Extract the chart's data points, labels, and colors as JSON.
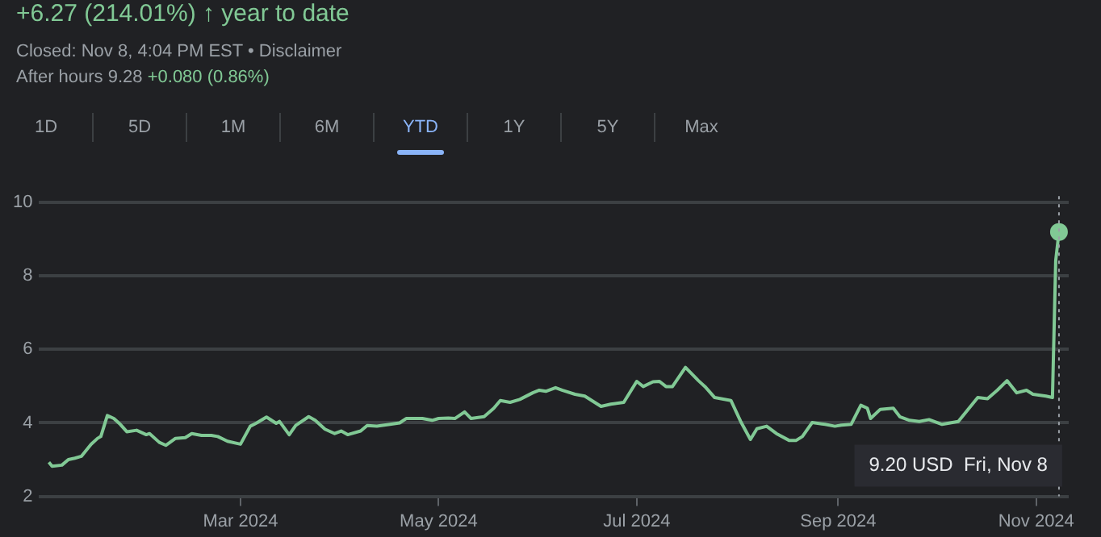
{
  "chart_data": {
    "type": "line",
    "title": "+6.27 (214.01%) ↑ year to date",
    "subtitle": "Closed: Nov 8, 4:04 PM EST • Disclaimer",
    "annotations": [
      "After hours 9.28",
      "+0.080 (0.86%)",
      "1D",
      "5D",
      "1M",
      "6M",
      "YTD",
      "1Y",
      "5Y",
      "Max",
      "9.20 USD  Fri, Nov 8"
    ],
    "x": [
      "2024-01-02",
      "2024-01-03",
      "2024-01-06",
      "2024-01-08",
      "2024-01-10",
      "2024-01-12",
      "2024-01-15",
      "2024-01-17",
      "2024-01-18",
      "2024-01-20",
      "2024-01-22",
      "2024-01-24",
      "2024-01-26",
      "2024-01-29",
      "2024-02-01",
      "2024-02-02",
      "2024-02-05",
      "2024-02-07",
      "2024-02-10",
      "2024-02-13",
      "2024-02-15",
      "2024-02-18",
      "2024-02-21",
      "2024-02-23",
      "2024-02-26",
      "2024-03-01",
      "2024-03-04",
      "2024-03-06",
      "2024-03-09",
      "2024-03-12",
      "2024-03-13",
      "2024-03-16",
      "2024-03-18",
      "2024-03-22",
      "2024-03-24",
      "2024-03-27",
      "2024-03-30",
      "2024-04-01",
      "2024-04-03",
      "2024-04-07",
      "2024-04-09",
      "2024-04-12",
      "2024-04-16",
      "2024-04-19",
      "2024-04-21",
      "2024-04-26",
      "2024-04-29",
      "2024-05-01",
      "2024-05-04",
      "2024-05-06",
      "2024-05-09",
      "2024-05-11",
      "2024-05-15",
      "2024-05-18",
      "2024-05-20",
      "2024-05-23",
      "2024-05-26",
      "2024-05-30",
      "2024-06-01",
      "2024-06-03",
      "2024-06-06",
      "2024-06-08",
      "2024-06-12",
      "2024-06-15",
      "2024-06-20",
      "2024-06-23",
      "2024-06-27",
      "2024-07-01",
      "2024-07-03",
      "2024-07-06",
      "2024-07-08",
      "2024-07-10",
      "2024-07-12",
      "2024-07-16",
      "2024-07-20",
      "2024-07-22",
      "2024-07-25",
      "2024-07-30",
      "2024-08-02",
      "2024-08-05",
      "2024-08-07",
      "2024-08-10",
      "2024-08-13",
      "2024-08-17",
      "2024-08-19",
      "2024-08-21",
      "2024-08-24",
      "2024-08-28",
      "2024-08-31",
      "2024-09-02",
      "2024-09-05",
      "2024-09-08",
      "2024-09-10",
      "2024-09-11",
      "2024-09-14",
      "2024-09-18",
      "2024-09-20",
      "2024-09-23",
      "2024-09-26",
      "2024-09-29",
      "2024-10-03",
      "2024-10-08",
      "2024-10-14",
      "2024-10-17",
      "2024-10-20",
      "2024-10-23",
      "2024-10-26",
      "2024-10-29",
      "2024-10-31",
      "2024-11-04",
      "2024-11-06",
      "2024-11-07",
      "2024-11-08"
    ],
    "series": [
      {
        "color": "#81c995",
        "values": [
          2.93,
          2.82,
          2.85,
          3.0,
          3.04,
          3.09,
          3.42,
          3.58,
          3.63,
          4.2,
          4.12,
          3.96,
          3.76,
          3.8,
          3.68,
          3.71,
          3.47,
          3.39,
          3.58,
          3.6,
          3.71,
          3.66,
          3.66,
          3.63,
          3.5,
          3.42,
          3.91,
          4.0,
          4.16,
          3.99,
          4.04,
          3.68,
          3.93,
          4.17,
          4.07,
          3.83,
          3.71,
          3.78,
          3.68,
          3.78,
          3.93,
          3.91,
          3.96,
          4.0,
          4.12,
          4.12,
          4.07,
          4.12,
          4.13,
          4.12,
          4.3,
          4.12,
          4.17,
          4.4,
          4.61,
          4.56,
          4.64,
          4.82,
          4.89,
          4.86,
          4.96,
          4.89,
          4.78,
          4.73,
          4.45,
          4.51,
          4.56,
          5.13,
          4.99,
          5.12,
          5.13,
          4.99,
          4.99,
          5.51,
          5.15,
          4.99,
          4.69,
          4.61,
          4.04,
          3.55,
          3.84,
          3.91,
          3.71,
          3.52,
          3.52,
          3.63,
          4.01,
          3.96,
          3.91,
          3.94,
          3.96,
          4.48,
          4.4,
          4.12,
          4.37,
          4.4,
          4.17,
          4.07,
          4.04,
          4.09,
          3.96,
          4.04,
          4.69,
          4.66,
          4.89,
          5.15,
          4.82,
          4.89,
          4.78,
          4.73,
          4.69,
          8.42,
          9.2
        ]
      }
    ],
    "xlim": [
      "2023-12-30",
      "2024-11-11"
    ],
    "xticks": [
      {
        "value": "2024-03-01",
        "label": "Mar 2024"
      },
      {
        "value": "2024-05-01",
        "label": "May 2024"
      },
      {
        "value": "2024-07-01",
        "label": "Jul 2024"
      },
      {
        "value": "2024-09-01",
        "label": "Sep 2024"
      },
      {
        "value": "2024-11-01",
        "label": "Nov 2024"
      }
    ],
    "ylim": [
      2,
      10
    ],
    "yticks": [
      2,
      4,
      6,
      8,
      10
    ],
    "grid": "y",
    "legend": false,
    "marker": "none",
    "line_style": "solid",
    "ref_lines": [
      {
        "axis": "x",
        "value": "2024-11-08",
        "color": "#9aa0a6",
        "line_style": "dotted"
      }
    ]
  }
}
